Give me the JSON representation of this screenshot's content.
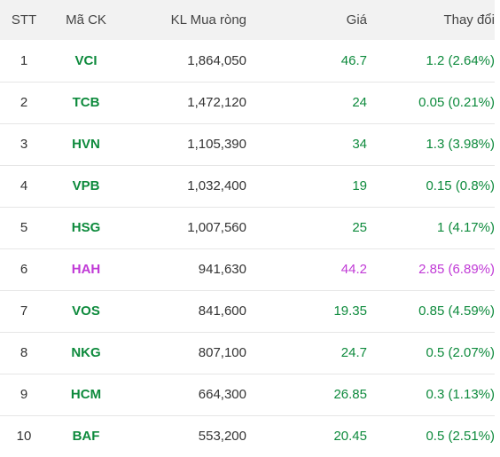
{
  "headers": {
    "stt": "STT",
    "symbol": "Mã CK",
    "net_buy_volume": "KL Mua ròng",
    "price": "Giá",
    "change": "Thay đổi"
  },
  "colors": {
    "up": "#0d8a3c",
    "ceiling": "#c039d6"
  },
  "rows": [
    {
      "stt": "1",
      "symbol": "VCI",
      "volume": "1,864,050",
      "price": "46.7",
      "change": "1.2 (2.64%)",
      "trend": "up"
    },
    {
      "stt": "2",
      "symbol": "TCB",
      "volume": "1,472,120",
      "price": "24",
      "change": "0.05 (0.21%)",
      "trend": "up"
    },
    {
      "stt": "3",
      "symbol": "HVN",
      "volume": "1,105,390",
      "price": "34",
      "change": "1.3 (3.98%)",
      "trend": "up"
    },
    {
      "stt": "4",
      "symbol": "VPB",
      "volume": "1,032,400",
      "price": "19",
      "change": "0.15 (0.8%)",
      "trend": "up"
    },
    {
      "stt": "5",
      "symbol": "HSG",
      "volume": "1,007,560",
      "price": "25",
      "change": "1 (4.17%)",
      "trend": "up"
    },
    {
      "stt": "6",
      "symbol": "HAH",
      "volume": "941,630",
      "price": "44.2",
      "change": "2.85 (6.89%)",
      "trend": "ceil"
    },
    {
      "stt": "7",
      "symbol": "VOS",
      "volume": "841,600",
      "price": "19.35",
      "change": "0.85 (4.59%)",
      "trend": "up"
    },
    {
      "stt": "8",
      "symbol": "NKG",
      "volume": "807,100",
      "price": "24.7",
      "change": "0.5 (2.07%)",
      "trend": "up"
    },
    {
      "stt": "9",
      "symbol": "HCM",
      "volume": "664,300",
      "price": "26.85",
      "change": "0.3 (1.13%)",
      "trend": "up"
    },
    {
      "stt": "10",
      "symbol": "BAF",
      "volume": "553,200",
      "price": "20.45",
      "change": "0.5 (2.51%)",
      "trend": "up"
    }
  ]
}
